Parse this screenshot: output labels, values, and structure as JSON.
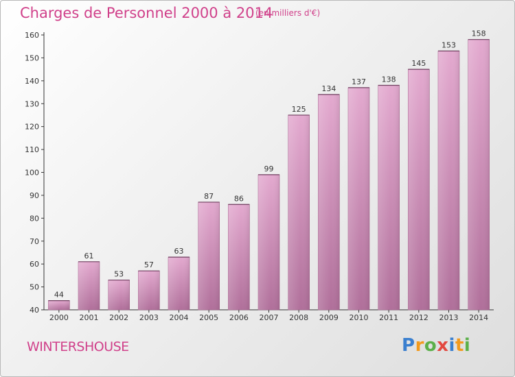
{
  "title": "Charges de Personnel 2000 à 2014",
  "subtitle": "(en milliers d'€)",
  "commune": "WINTERSHOUSE",
  "logo": {
    "letters": [
      "P",
      "r",
      "o",
      "x",
      "i",
      "t",
      "i"
    ],
    "colors": [
      "#3a7fcf",
      "#f29a1d",
      "#5bb04a",
      "#e2483f",
      "#3a7fcf",
      "#f29a1d",
      "#5bb04a"
    ]
  },
  "colors": {
    "bar_top": "#e3a9cf",
    "bar_bottom": "#b06f9a",
    "accent": "#d0408a"
  },
  "chart_data": {
    "type": "bar",
    "title": "Charges de Personnel 2000 à 2014",
    "subtitle": "(en milliers d'€)",
    "xlabel": "",
    "ylabel": "",
    "categories": [
      "2000",
      "2001",
      "2002",
      "2003",
      "2004",
      "2005",
      "2006",
      "2007",
      "2008",
      "2009",
      "2010",
      "2011",
      "2012",
      "2013",
      "2014"
    ],
    "values": [
      44,
      61,
      53,
      57,
      63,
      87,
      86,
      99,
      125,
      134,
      137,
      138,
      145,
      153,
      158
    ],
    "ylim": [
      40,
      160
    ],
    "yticks": [
      40,
      50,
      60,
      70,
      80,
      90,
      100,
      110,
      120,
      130,
      140,
      150,
      160
    ],
    "grid": false,
    "legend": "none"
  }
}
